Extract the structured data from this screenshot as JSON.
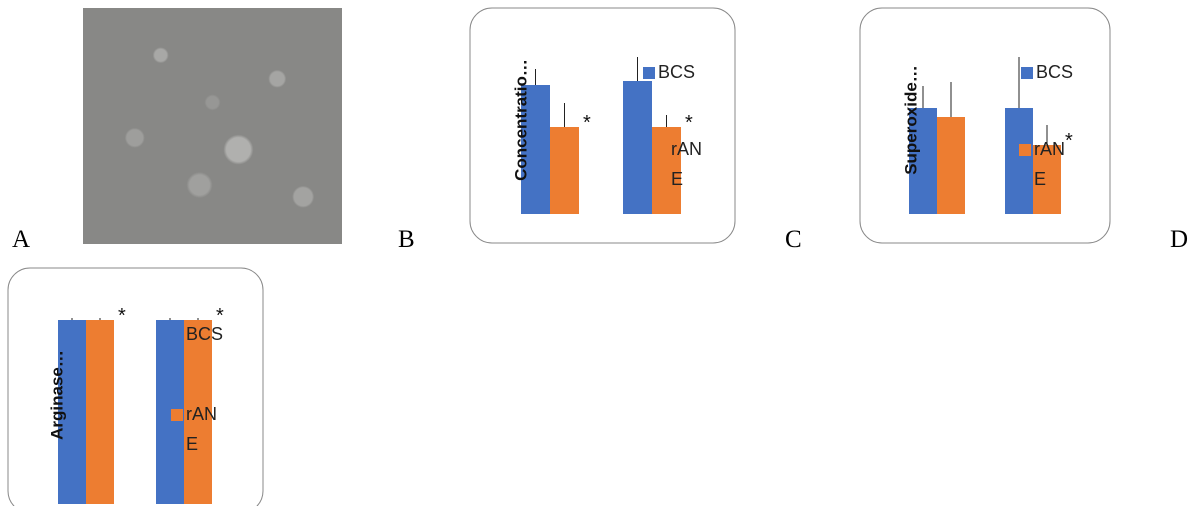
{
  "panel_labels": [
    "A",
    "B",
    "C",
    "D"
  ],
  "chart_data": [
    {
      "type": "bar",
      "ylabel": "Concentratio…",
      "categories": [
        null,
        null
      ],
      "ylim": [
        0,
        200
      ],
      "series": [
        {
          "name": "BCS",
          "color": "#4472c4",
          "values": [
            129,
            133
          ],
          "errors": [
            16,
            24
          ]
        },
        {
          "name": "rANE",
          "color": "#ed7d31",
          "values": [
            87,
            87
          ],
          "errors": [
            24,
            12
          ],
          "significance": [
            "*",
            "*"
          ]
        }
      ]
    },
    {
      "type": "bar",
      "ylabel": "Superoxide…",
      "categories": [
        null,
        null
      ],
      "ylim": [
        0,
        200
      ],
      "series": [
        {
          "name": "BCS",
          "color": "#4472c4",
          "values": [
            106,
            106
          ],
          "errors": [
            22,
            51
          ]
        },
        {
          "name": "rANE",
          "color": "#ed7d31",
          "values": [
            97,
            69
          ],
          "errors": [
            35,
            20
          ],
          "significance": [
            null,
            "*"
          ]
        }
      ]
    },
    {
      "type": "bar",
      "ylabel": "Arginase…",
      "categories": [
        null,
        null
      ],
      "ylim": [
        0,
        200
      ],
      "series": [
        {
          "name": "BCS",
          "color": "#4472c4",
          "values": [
            184,
            184
          ],
          "errors": [
            2,
            2
          ]
        },
        {
          "name": "rANE",
          "color": "#ed7d31",
          "values": [
            184,
            184
          ],
          "errors": [
            2,
            2
          ],
          "significance": [
            "*",
            "*"
          ]
        }
      ]
    }
  ]
}
